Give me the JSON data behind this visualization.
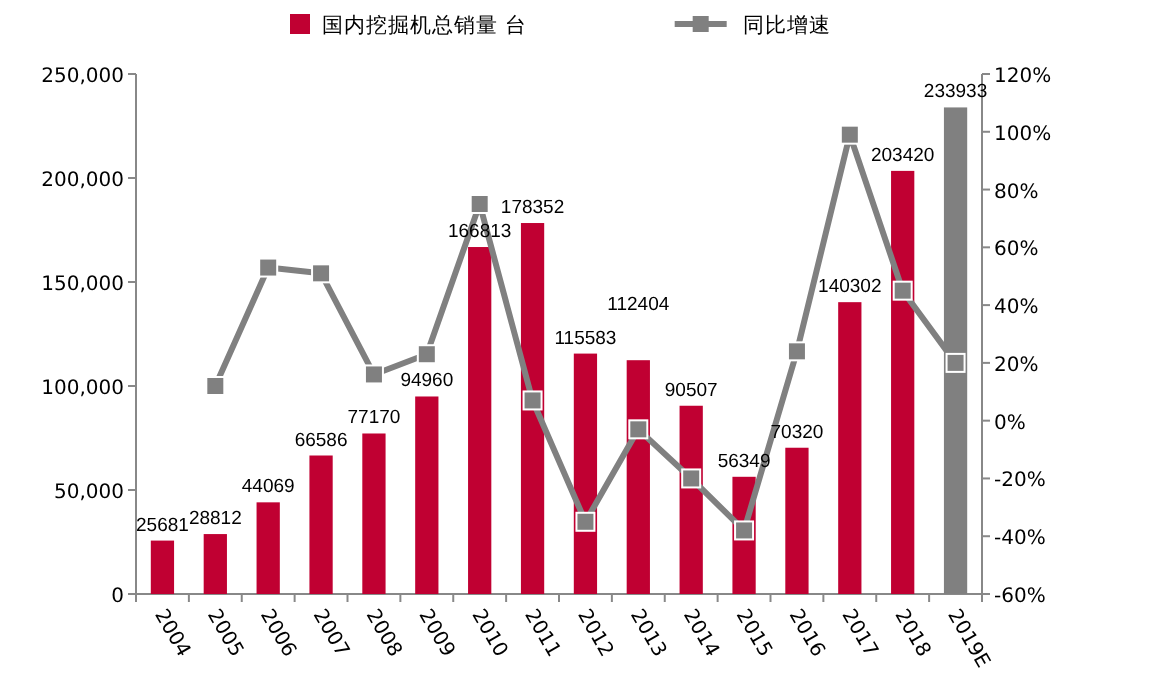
{
  "chart_data": {
    "type": "bar",
    "categories": [
      "2004",
      "2005",
      "2006",
      "2007",
      "2008",
      "2009",
      "2010",
      "2011",
      "2012",
      "2013",
      "2014",
      "2015",
      "2016",
      "2017",
      "2018",
      "2019E"
    ],
    "series": [
      {
        "name": "国内挖掘机总销量 台",
        "colors": [
          "#c00032",
          "#c00032",
          "#c00032",
          "#c00032",
          "#c00032",
          "#c00032",
          "#c00032",
          "#c00032",
          "#c00032",
          "#c00032",
          "#c00032",
          "#c00032",
          "#c00032",
          "#c00032",
          "#c00032",
          "#808080"
        ],
        "values": [
          25681,
          28812,
          44069,
          66586,
          77170,
          94960,
          166813,
          178352,
          115583,
          112404,
          90507,
          56349,
          70320,
          140302,
          203420,
          233933
        ],
        "value_labels": [
          "25681",
          "28812",
          "44069",
          "66586",
          "77170",
          "94960",
          "166813",
          "178352",
          "115583",
          "112404",
          "90507",
          "56349",
          "70320",
          "140302",
          "203420",
          "233933"
        ]
      },
      {
        "name": "同比增速",
        "type": "line",
        "axis": "y2",
        "color": "#808080",
        "marker": "square",
        "values": [
          null,
          12,
          53,
          51,
          16,
          23,
          75,
          7,
          -35,
          -3,
          -20,
          -38,
          24,
          99,
          45,
          20
        ]
      }
    ],
    "ylim": [
      0,
      250000
    ],
    "yticks": [
      {
        "value": 0,
        "label": "0"
      },
      {
        "value": 50000,
        "label": "50,000"
      },
      {
        "value": 100000,
        "label": "100,000"
      },
      {
        "value": 150000,
        "label": "150,000"
      },
      {
        "value": 200000,
        "label": "200,000"
      },
      {
        "value": 250000,
        "label": "250,000"
      }
    ],
    "y2lim": [
      -60,
      120
    ],
    "y2ticks": [
      {
        "value": -60,
        "label": "-60%"
      },
      {
        "value": -40,
        "label": "-40%"
      },
      {
        "value": -20,
        "label": "-20%"
      },
      {
        "value": 0,
        "label": "0%"
      },
      {
        "value": 20,
        "label": "20%"
      },
      {
        "value": 40,
        "label": "40%"
      },
      {
        "value": 60,
        "label": "60%"
      },
      {
        "value": 80,
        "label": "80%"
      },
      {
        "value": 100,
        "label": "100%"
      },
      {
        "value": 120,
        "label": "120%"
      }
    ],
    "legend": "top",
    "grid": false
  }
}
